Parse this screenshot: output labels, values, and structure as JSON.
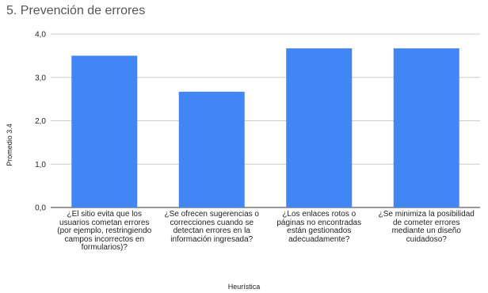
{
  "chart_data": {
    "type": "bar",
    "title": "5. Prevención de errores",
    "xlabel": "Heurística",
    "ylabel": "Promedio 3.4",
    "ylim": [
      0,
      4
    ],
    "yticks": [
      "0,0",
      "1,0",
      "2,0",
      "3,0",
      "4,0"
    ],
    "grid": true,
    "legend": "none",
    "bar_color": "#4285f4",
    "categories": [
      "¿El sitio evita que los usuarios cometan errores (por ejemplo, restringiendo campos incorrectos en formularios)?",
      "¿Se ofrecen sugerencias o correcciones cuando se detectan errores en la información ingresada?",
      "¿Los enlaces rotos o páginas no encontradas están gestionados adecuadamente?",
      "¿Se minimiza la posibilidad de cometer errores mediante un diseño cuidadoso?"
    ],
    "values": [
      3.5,
      2.67,
      3.67,
      3.67
    ]
  }
}
